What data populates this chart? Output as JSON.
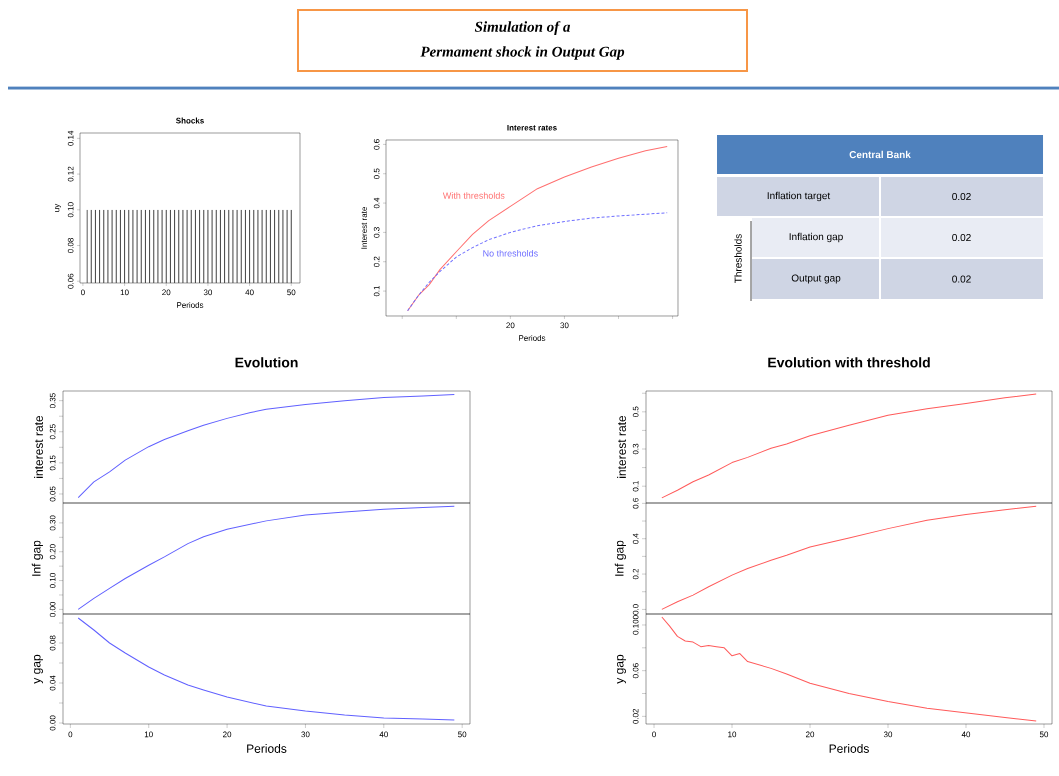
{
  "chart_data": [
    {
      "type": "other",
      "title": "Simulation of a",
      "subtitle": "Permament shock in Output Gap"
    },
    {
      "type": "bar",
      "title": "Shocks",
      "xlabel": "Periods",
      "ylabel": "uy",
      "color": "#404040",
      "x": [
        1,
        2,
        3,
        4,
        5,
        6,
        7,
        8,
        9,
        10,
        11,
        12,
        13,
        14,
        15,
        16,
        17,
        18,
        19,
        20,
        21,
        22,
        23,
        24,
        25,
        26,
        27,
        28,
        29,
        30,
        31,
        32,
        33,
        34,
        35,
        36,
        37,
        38,
        39,
        40,
        41,
        42,
        43,
        44,
        45,
        46,
        47,
        48,
        49,
        50
      ],
      "values": [
        0.1,
        0.1,
        0.1,
        0.1,
        0.1,
        0.1,
        0.1,
        0.1,
        0.1,
        0.1,
        0.1,
        0.1,
        0.1,
        0.1,
        0.1,
        0.1,
        0.1,
        0.1,
        0.1,
        0.1,
        0.1,
        0.1,
        0.1,
        0.1,
        0.1,
        0.1,
        0.1,
        0.1,
        0.1,
        0.1,
        0.1,
        0.1,
        0.1,
        0.1,
        0.1,
        0.1,
        0.1,
        0.1,
        0.1,
        0.1,
        0.1,
        0.1,
        0.1,
        0.1,
        0.1,
        0.1,
        0.1,
        0.1,
        0.1,
        0.1
      ],
      "xlim": [
        -0.7,
        52.1
      ],
      "xticks": [
        0,
        10,
        20,
        30,
        40,
        50
      ],
      "ylim": [
        0.059,
        0.143
      ],
      "yticks": [
        {
          "value": 0.06,
          "label": "0.06"
        },
        {
          "value": 0.08,
          "label": "0.08"
        },
        {
          "value": 0.1,
          "label": "0.10"
        },
        {
          "value": 0.12,
          "label": "0.12"
        },
        {
          "value": 0.14,
          "label": "0.14"
        }
      ]
    },
    {
      "type": "line",
      "title": "Interest rates",
      "xlabel": "Periods",
      "ylabel": "Interest rate",
      "xlim": [
        -3,
        51
      ],
      "xticks": [
        {
          "value": 0,
          "label": null
        },
        {
          "value": 10,
          "label": null
        },
        20,
        30,
        {
          "value": 40,
          "label": null
        },
        {
          "value": 50,
          "label": null
        }
      ],
      "ylim": [
        0.015,
        0.615
      ],
      "yticks": [
        0.1,
        0.2,
        0.3,
        0.4,
        0.5,
        0.6
      ],
      "series": [
        {
          "name": "With thresholds",
          "color": "#ff6f6f",
          "line_style": "solid",
          "x": [
            1,
            3,
            5,
            7,
            10,
            13,
            16,
            20,
            25,
            30,
            35,
            40,
            45,
            49
          ],
          "values": [
            0.033,
            0.085,
            0.122,
            0.174,
            0.234,
            0.293,
            0.34,
            0.389,
            0.449,
            0.489,
            0.523,
            0.553,
            0.578,
            0.593
          ]
        },
        {
          "name": "No thresholds",
          "color": "#6f6fff",
          "line_style": "dashed",
          "x": [
            1,
            3,
            5,
            7,
            10,
            13,
            16,
            20,
            25,
            30,
            35,
            40,
            45,
            49
          ],
          "values": [
            0.033,
            0.085,
            0.13,
            0.167,
            0.216,
            0.248,
            0.275,
            0.3,
            0.323,
            0.337,
            0.349,
            0.356,
            0.362,
            0.367
          ]
        }
      ]
    },
    {
      "type": "other",
      "title": "Central Bank",
      "annotations": [
        "Inflation target",
        "0.02",
        "Thresholds",
        "Inflation gap",
        "0.02",
        "Output gap",
        "0.02"
      ]
    },
    {
      "type": "line",
      "title": "Evolution",
      "ylabel": "interest rate",
      "tick_labels": "y",
      "xlim": [
        -0.94,
        51
      ],
      "ylim": [
        0.021,
        0.381
      ],
      "yticks": [
        0.05,
        {
          "value": 0.1,
          "label": null
        },
        0.15,
        {
          "value": 0.2,
          "label": null
        },
        0.25,
        {
          "value": 0.3,
          "label": null
        },
        0.35
      ],
      "series": [
        {
          "color": "#6060ff",
          "x": [
            1,
            3,
            5,
            7,
            10,
            12,
            15,
            17,
            20,
            23,
            25,
            30,
            35,
            40,
            45,
            49
          ],
          "values": [
            0.038,
            0.089,
            0.121,
            0.159,
            0.202,
            0.225,
            0.253,
            0.271,
            0.293,
            0.312,
            0.322,
            0.338,
            0.35,
            0.36,
            0.365,
            0.37
          ]
        }
      ]
    },
    {
      "type": "line",
      "ylabel": "Inf gap",
      "tick_labels": "y",
      "xlim": [
        -0.94,
        51
      ],
      "ylim": [
        -0.016,
        0.369
      ],
      "yticks": [
        {
          "value": 0,
          "label": "0.00"
        },
        {
          "value": 0.05,
          "label": null
        },
        {
          "value": 0.1,
          "label": "0.10"
        },
        {
          "value": 0.15,
          "label": null
        },
        {
          "value": 0.2,
          "label": "0.20"
        },
        {
          "value": 0.25,
          "label": null
        },
        {
          "value": 0.3,
          "label": "0.30"
        }
      ],
      "series": [
        {
          "color": "#6060ff",
          "x": [
            1,
            3,
            5,
            7,
            10,
            12,
            15,
            17,
            20,
            25,
            30,
            35,
            40,
            45,
            49
          ],
          "values": [
            0,
            0.038,
            0.073,
            0.107,
            0.153,
            0.182,
            0.228,
            0.252,
            0.278,
            0.307,
            0.327,
            0.338,
            0.347,
            0.353,
            0.358
          ]
        }
      ]
    },
    {
      "type": "line",
      "xlabel": "Periods",
      "ylabel": "y gap",
      "xlim": [
        -0.94,
        51
      ],
      "xticks": [
        0,
        10,
        20,
        30,
        40,
        50
      ],
      "ylim": [
        -0.001,
        0.109
      ],
      "yticks": [
        {
          "value": 0,
          "label": "0.00"
        },
        {
          "value": 0.02,
          "label": null
        },
        {
          "value": 0.04,
          "label": "0.04"
        },
        {
          "value": 0.06,
          "label": null
        },
        {
          "value": 0.08,
          "label": "0.08"
        },
        {
          "value": 0.1,
          "label": null
        }
      ],
      "series": [
        {
          "color": "#6060ff",
          "x": [
            1,
            3,
            5,
            7,
            10,
            12,
            15,
            17,
            20,
            25,
            30,
            35,
            40,
            45,
            49
          ],
          "values": [
            0.105,
            0.093,
            0.08,
            0.07,
            0.056,
            0.048,
            0.038,
            0.033,
            0.026,
            0.017,
            0.012,
            0.008,
            0.005,
            0.004,
            0.003
          ]
        }
      ]
    },
    {
      "type": "line",
      "title": "Evolution with threshold",
      "ylabel": "interest rate",
      "tick_labels": "y",
      "xlim": [
        -1.03,
        51.03
      ],
      "ylim": [
        0.0096,
        0.612
      ],
      "yticks": [
        0.1,
        {
          "value": 0.2,
          "label": null
        },
        0.3,
        {
          "value": 0.4,
          "label": null
        },
        0.5,
        {
          "value": 0.6,
          "label": null
        }
      ],
      "series": [
        {
          "color": "#ff5a5a",
          "x": [
            1,
            3,
            5,
            7,
            10,
            12,
            15,
            17,
            20,
            25,
            30,
            35,
            40,
            45,
            49
          ],
          "values": [
            0.037,
            0.078,
            0.124,
            0.16,
            0.227,
            0.255,
            0.304,
            0.327,
            0.371,
            0.428,
            0.482,
            0.516,
            0.545,
            0.576,
            0.596
          ]
        }
      ]
    },
    {
      "type": "line",
      "ylabel": "Inf gap",
      "tick_labels": "y",
      "xlim": [
        -1.03,
        51.03
      ],
      "ylim": [
        -0.026,
        0.602
      ],
      "yticks": [
        {
          "value": 0,
          "label": "0.0"
        },
        {
          "value": 0.1,
          "label": null
        },
        0.2,
        {
          "value": 0.3,
          "label": null
        },
        0.4,
        {
          "value": 0.5,
          "label": null
        },
        0.6
      ],
      "series": [
        {
          "color": "#ff5a5a",
          "x": [
            1,
            3,
            5,
            7,
            10,
            12,
            15,
            17,
            20,
            25,
            30,
            35,
            40,
            45,
            49
          ],
          "values": [
            0,
            0.043,
            0.081,
            0.128,
            0.194,
            0.231,
            0.278,
            0.306,
            0.353,
            0.404,
            0.457,
            0.504,
            0.537,
            0.564,
            0.583
          ]
        }
      ]
    },
    {
      "type": "line",
      "xlabel": "Periods",
      "ylabel": "y gap",
      "xlim": [
        -1.03,
        51.03
      ],
      "xticks": [
        0,
        10,
        20,
        30,
        40,
        50
      ],
      "ylim": [
        0.0133,
        0.1096
      ],
      "yticks": [
        {
          "value": 0.02,
          "label": "0.02"
        },
        {
          "value": 0.04,
          "label": null
        },
        {
          "value": 0.06,
          "label": "0.06"
        },
        {
          "value": 0.08,
          "label": null
        },
        {
          "value": 0.1,
          "label": "0.100"
        }
      ],
      "series": [
        {
          "color": "#ff5a5a",
          "x": [
            1,
            2,
            3,
            4,
            5,
            6,
            7,
            8,
            9,
            10,
            11,
            12,
            15,
            17,
            20,
            25,
            30,
            35,
            40,
            45,
            49
          ],
          "values": [
            0.107,
            0.099,
            0.09,
            0.086,
            0.085,
            0.081,
            0.082,
            0.081,
            0.08,
            0.073,
            0.075,
            0.068,
            0.062,
            0.057,
            0.049,
            0.04,
            0.033,
            0.027,
            0.023,
            0.019,
            0.016
          ]
        }
      ]
    }
  ]
}
